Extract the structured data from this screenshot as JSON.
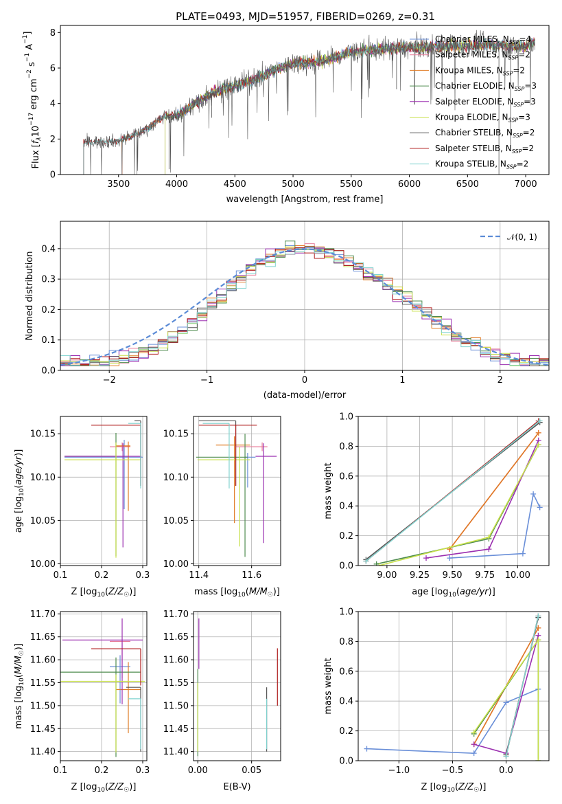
{
  "figure": {
    "title": "PLATE=0493, MJD=51957, FIBERID=0269, z=0.31"
  },
  "series": [
    {
      "key": "chab_miles",
      "legend": "Chabrier MILES, N$_{SSP}$=4",
      "name": "Chabrier MILES, N",
      "sub": "SSP",
      "n": "=4",
      "color": "#6a8fd8"
    },
    {
      "key": "salp_miles",
      "legend": "Salpeter MILES, N$_{SSP}$=2",
      "name": "Salpeter MILES, N",
      "sub": "SSP",
      "n": "=2",
      "color": "#e87d9a"
    },
    {
      "key": "krou_miles",
      "legend": "Kroupa MILES, N$_{SSP}$=2",
      "name": "Kroupa MILES, N",
      "sub": "SSP",
      "n": "=2",
      "color": "#e07b24"
    },
    {
      "key": "chab_elodie",
      "legend": "Chabrier ELODIE, N$_{SSP}$=3",
      "name": "Chabrier ELODIE, N",
      "sub": "SSP",
      "n": "=3",
      "color": "#4f8c4f"
    },
    {
      "key": "salp_elodie",
      "legend": "Salpeter ELODIE, N$_{SSP}$=3",
      "name": "Salpeter ELODIE, N",
      "sub": "SSP",
      "n": "=3",
      "color": "#9b2fb0"
    },
    {
      "key": "krou_elodie",
      "legend": "Kroupa ELODIE, N$_{SSP}$=3",
      "name": "Kroupa ELODIE, N",
      "sub": "SSP",
      "n": "=3",
      "color": "#c8e04a"
    },
    {
      "key": "chab_stelib",
      "legend": "Chabrier STELIB, N$_{SSP}$=2",
      "name": "Chabrier STELIB, N",
      "sub": "SSP",
      "n": "=2",
      "color": "#555555"
    },
    {
      "key": "salp_stelib",
      "legend": "Salpeter STELIB, N$_{SSP}$=2",
      "name": "Salpeter STELIB, N",
      "sub": "SSP",
      "n": "=2",
      "color": "#b01f1f"
    },
    {
      "key": "krou_stelib",
      "legend": "Kroupa STELIB, N$_{SSP}$=2",
      "name": "Kroupa STELIB, N",
      "sub": "SSP",
      "n": "=2",
      "color": "#7fd3cf"
    }
  ],
  "chart_data": [
    {
      "id": "spectrum",
      "type": "line",
      "xlabel": "wavelength [Angstrom, rest frame]",
      "ylabel_parts": [
        "Flux [",
        "f",
        "λ",
        "10",
        "−17",
        " erg cm",
        "−2",
        " s",
        "−1",
        " A",
        "−1",
        "]"
      ],
      "xlim": [
        3000,
        7200
      ],
      "ylim": [
        0,
        8.4
      ],
      "xticks": [
        3500,
        4000,
        4500,
        5000,
        5500,
        6000,
        6500,
        7000
      ],
      "yticks": [
        0,
        2,
        4,
        6,
        8
      ],
      "continuum": [
        [
          3200,
          1.8
        ],
        [
          3500,
          1.9
        ],
        [
          3700,
          2.4
        ],
        [
          3900,
          3.3
        ],
        [
          4000,
          3.3
        ],
        [
          4300,
          4.6
        ],
        [
          4600,
          5.2
        ],
        [
          5000,
          6.3
        ],
        [
          5200,
          6.3
        ],
        [
          5500,
          6.9
        ],
        [
          5800,
          7.1
        ],
        [
          6200,
          7.2
        ],
        [
          6700,
          7.3
        ],
        [
          7000,
          7.2
        ],
        [
          7100,
          7.6
        ]
      ]
    },
    {
      "id": "residuals",
      "type": "histogram",
      "xlabel": "(data-model)/error",
      "ylabel": "Normed distribution",
      "xlim": [
        -2.5,
        2.5
      ],
      "ylim": [
        0,
        0.49
      ],
      "xticks": [
        -2,
        -1,
        0,
        1,
        2
      ],
      "yticks": [
        0.0,
        0.1,
        0.2,
        0.3,
        0.4
      ],
      "bin_width": 0.1,
      "reference": {
        "label": "𝒩(0, 1)",
        "mean": 0,
        "sigma": 1,
        "color": "#5b8bd6"
      }
    },
    {
      "id": "age_vs_Z",
      "type": "errorbar",
      "xlabel": "Z [log10(Z/Z☉)]",
      "ylabel": "age [log10(age/yr)]",
      "xlim": [
        0.1,
        0.31
      ],
      "ylim": [
        9.998,
        10.17
      ],
      "xticks": [
        0.1,
        0.2,
        0.3
      ],
      "yticks": [
        10.0,
        10.05,
        10.1,
        10.15
      ],
      "points": [
        {
          "s": "chab_miles",
          "x": 0.255,
          "xerr": [
            0.145,
            0.045
          ],
          "y": 10.123,
          "yerr": [
            0.06,
            0.02
          ]
        },
        {
          "s": "salp_miles",
          "x": 0.25,
          "xerr": [
            0.03,
            0.02
          ],
          "y": 10.135,
          "yerr": [
            0.005,
            0.005
          ]
        },
        {
          "s": "krou_miles",
          "x": 0.265,
          "xerr": [
            0.03,
            0.005
          ],
          "y": 10.136,
          "yerr": [
            0.075,
            0.005
          ]
        },
        {
          "s": "chab_elodie",
          "x": 0.235,
          "xerr": [
            0.125,
            0.0
          ],
          "y": 10.124,
          "yerr": [
            0.115,
            0.027
          ]
        },
        {
          "s": "salp_elodie",
          "x": 0.252,
          "xerr": [
            0.142,
            0.045
          ],
          "y": 10.124,
          "yerr": [
            0.105,
            0.015
          ]
        },
        {
          "s": "krou_elodie",
          "x": 0.235,
          "xerr": [
            0.125,
            0.06
          ],
          "y": 10.12,
          "yerr": [
            0.113,
            0.02
          ]
        },
        {
          "s": "chab_stelib",
          "x": 0.295,
          "xerr": [
            0.015,
            0.0
          ],
          "y": 10.165,
          "yerr": [
            0.075,
            0.0
          ]
        },
        {
          "s": "salp_stelib",
          "x": 0.295,
          "xerr": [
            0.12,
            0.0
          ],
          "y": 10.16,
          "yerr": [
            0.07,
            0.0
          ]
        },
        {
          "s": "krou_stelib",
          "x": 0.295,
          "xerr": [
            0.03,
            0.0
          ],
          "y": 10.162,
          "yerr": [
            0.075,
            0.0
          ]
        }
      ]
    },
    {
      "id": "age_vs_mass",
      "type": "errorbar",
      "xlabel": "mass [log10(M/M☉)]",
      "ylabel": "",
      "xlim": [
        11.38,
        11.71
      ],
      "ylim": [
        9.998,
        10.17
      ],
      "xticks": [
        11.4,
        11.6
      ],
      "yticks": [
        10.0,
        10.05,
        10.1,
        10.15
      ],
      "points": [
        {
          "s": "chab_miles",
          "x": 11.585,
          "xerr": [
            0.01,
            0.03
          ],
          "y": 10.123,
          "yerr": [
            0.035,
            0.005
          ]
        },
        {
          "s": "salp_miles",
          "x": 11.64,
          "xerr": [
            0.1,
            0.02
          ],
          "y": 10.135,
          "yerr": [
            0.005,
            0.005
          ]
        },
        {
          "s": "krou_miles",
          "x": 11.535,
          "xerr": [
            0.07,
            0.06
          ],
          "y": 10.137,
          "yerr": [
            0.09,
            0.01
          ]
        },
        {
          "s": "chab_elodie",
          "x": 11.575,
          "xerr": [
            0.185,
            0.01
          ],
          "y": 10.123,
          "yerr": [
            0.115,
            0.027
          ]
        },
        {
          "s": "salp_elodie",
          "x": 11.645,
          "xerr": [
            0.03,
            0.05
          ],
          "y": 10.124,
          "yerr": [
            0.1,
            0.015
          ]
        },
        {
          "s": "krou_elodie",
          "x": 11.555,
          "xerr": [
            0.16,
            0.04
          ],
          "y": 10.12,
          "yerr": [
            0.1,
            0.015
          ]
        },
        {
          "s": "chab_stelib",
          "x": 11.54,
          "xerr": [
            0.14,
            0.0
          ],
          "y": 10.165,
          "yerr": [
            0.075,
            0.0
          ]
        },
        {
          "s": "salp_stelib",
          "x": 11.54,
          "xerr": [
            0.14,
            0.08
          ],
          "y": 10.16,
          "yerr": [
            0.07,
            0.0
          ]
        },
        {
          "s": "krou_stelib",
          "x": 11.515,
          "xerr": [
            0.1,
            0.0
          ],
          "y": 10.162,
          "yerr": [
            0.075,
            0.0
          ]
        }
      ]
    },
    {
      "id": "weight_vs_age",
      "type": "line",
      "xlabel": "age [log10(age/yr)]",
      "ylabel": "mass weight",
      "xlim": [
        8.78,
        10.24
      ],
      "ylim": [
        0,
        1.0
      ],
      "xticks": [
        9.0,
        9.25,
        9.5,
        9.75,
        10.0
      ],
      "yticks": [
        0.0,
        0.2,
        0.4,
        0.6,
        0.8,
        1.0
      ],
      "lines": [
        {
          "s": "chab_miles",
          "x": [
            9.48,
            10.04,
            10.12,
            10.17
          ],
          "y": [
            0.05,
            0.08,
            0.48,
            0.39
          ]
        },
        {
          "s": "salp_miles",
          "x": [
            9.48,
            10.16
          ],
          "y": [
            0.11,
            0.89
          ]
        },
        {
          "s": "krou_miles",
          "x": [
            9.48,
            10.16
          ],
          "y": [
            0.11,
            0.89
          ]
        },
        {
          "s": "chab_elodie",
          "x": [
            8.92,
            9.78,
            10.16
          ],
          "y": [
            0.01,
            0.18,
            0.81
          ]
        },
        {
          "s": "salp_elodie",
          "x": [
            9.3,
            9.78,
            10.16
          ],
          "y": [
            0.05,
            0.11,
            0.84
          ]
        },
        {
          "s": "krou_elodie",
          "x": [
            8.94,
            9.78,
            10.16
          ],
          "y": [
            0.0,
            0.19,
            0.81
          ]
        },
        {
          "s": "chab_stelib",
          "x": [
            8.84,
            10.17
          ],
          "y": [
            0.04,
            0.96
          ]
        },
        {
          "s": "salp_stelib",
          "x": [
            8.84,
            10.16
          ],
          "y": [
            0.03,
            0.97
          ]
        },
        {
          "s": "krou_stelib",
          "x": [
            8.84,
            10.17
          ],
          "y": [
            0.03,
            0.97
          ]
        }
      ]
    },
    {
      "id": "mass_vs_Z",
      "type": "errorbar",
      "xlabel": "Z [log10(Z/Z☉)]",
      "ylabel": "mass [log10(M/M☉)]",
      "xlim": [
        0.1,
        0.31
      ],
      "ylim": [
        11.38,
        11.705
      ],
      "xticks": [
        0.1,
        0.2,
        0.3
      ],
      "yticks": [
        11.4,
        11.45,
        11.5,
        11.55,
        11.6,
        11.65,
        11.7
      ],
      "points": [
        {
          "s": "chab_miles",
          "x": 0.245,
          "xerr": [
            0.025,
            0.025
          ],
          "y": 11.585,
          "yerr": [
            0.08,
            0.025
          ]
        },
        {
          "s": "salp_miles",
          "x": 0.25,
          "xerr": [
            0.03,
            0.02
          ],
          "y": 11.64,
          "yerr": [
            0.08,
            0.0
          ]
        },
        {
          "s": "krou_miles",
          "x": 0.265,
          "xerr": [
            0.03,
            0.03
          ],
          "y": 11.535,
          "yerr": [
            0.095,
            0.06
          ]
        },
        {
          "s": "chab_elodie",
          "x": 0.235,
          "xerr": [
            0.135,
            0.06
          ],
          "y": 11.573,
          "yerr": [
            0.185,
            0.032
          ]
        },
        {
          "s": "salp_elodie",
          "x": 0.25,
          "xerr": [
            0.145,
            0.05
          ],
          "y": 11.643,
          "yerr": [
            0.14,
            0.047
          ]
        },
        {
          "s": "krou_elodie",
          "x": 0.235,
          "xerr": [
            0.135,
            0.07
          ],
          "y": 11.553,
          "yerr": [
            0.155,
            0.015
          ]
        },
        {
          "s": "chab_stelib",
          "x": 0.295,
          "xerr": [
            0.035,
            0.0
          ],
          "y": 11.54,
          "yerr": [
            0.14,
            0.0
          ]
        },
        {
          "s": "salp_stelib",
          "x": 0.295,
          "xerr": [
            0.12,
            0.0
          ],
          "y": 11.624,
          "yerr": [
            0.08,
            0.0
          ]
        },
        {
          "s": "krou_stelib",
          "x": 0.295,
          "xerr": [
            0.03,
            0.0
          ],
          "y": 11.515,
          "yerr": [
            0.11,
            0.0
          ]
        }
      ]
    },
    {
      "id": "mass_vs_ebv",
      "type": "errorbar",
      "xlabel": "E(B-V)",
      "ylabel": "",
      "xlim": [
        -0.004,
        0.077
      ],
      "ylim": [
        11.38,
        11.705
      ],
      "xticks": [
        0.0,
        0.05
      ],
      "yticks": [
        11.4,
        11.45,
        11.5,
        11.55,
        11.6,
        11.65,
        11.7
      ],
      "points": [
        {
          "s": "salp_elodie",
          "x": 0.001,
          "xerr": [
            0,
            0
          ],
          "y": 11.64,
          "yerr": [
            0.06,
            0.05
          ]
        },
        {
          "s": "chab_elodie",
          "x": 0.0,
          "xerr": [
            0,
            0
          ],
          "y": 11.58,
          "yerr": [
            0.19,
            0.0
          ]
        },
        {
          "s": "krou_elodie",
          "x": 0.0,
          "xerr": [
            0,
            0
          ],
          "y": 11.55,
          "yerr": [
            0.15,
            0.0
          ]
        },
        {
          "s": "chab_stelib",
          "x": 0.064,
          "xerr": [
            0,
            0
          ],
          "y": 11.54,
          "yerr": [
            0.14,
            0.0
          ]
        },
        {
          "s": "krou_stelib",
          "x": 0.064,
          "xerr": [
            0,
            0
          ],
          "y": 11.515,
          "yerr": [
            0.11,
            0.0
          ]
        },
        {
          "s": "salp_stelib",
          "x": 0.074,
          "xerr": [
            0,
            0
          ],
          "y": 11.57,
          "yerr": [
            0.07,
            0.055
          ]
        }
      ]
    },
    {
      "id": "weight_vs_Z",
      "type": "line",
      "xlabel": "Z [log10(Z/Z☉)]",
      "ylabel": "mass weight",
      "xlim": [
        -1.38,
        0.4
      ],
      "ylim": [
        0,
        1.0
      ],
      "xticks": [
        -1.0,
        -0.5,
        0.0
      ],
      "yticks": [
        0.0,
        0.2,
        0.4,
        0.6,
        0.8,
        1.0
      ],
      "lines": [
        {
          "s": "chab_miles",
          "x": [
            -1.3,
            -0.3,
            0.0,
            0.3
          ],
          "y": [
            0.08,
            0.05,
            0.39,
            0.48
          ]
        },
        {
          "s": "salp_miles",
          "x": [
            -0.3,
            0.3
          ],
          "y": [
            0.11,
            0.89
          ]
        },
        {
          "s": "krou_miles",
          "x": [
            -0.3,
            0.3
          ],
          "y": [
            0.11,
            0.89
          ]
        },
        {
          "s": "chab_elodie",
          "x": [
            -0.3,
            0.3,
            0.3
          ],
          "y": [
            0.18,
            0.81,
            0.0
          ]
        },
        {
          "s": "salp_elodie",
          "x": [
            -0.3,
            0.0,
            0.3
          ],
          "y": [
            0.11,
            0.05,
            0.84
          ]
        },
        {
          "s": "krou_elodie",
          "x": [
            -0.3,
            0.3,
            0.3
          ],
          "y": [
            0.19,
            0.81,
            0.0
          ]
        },
        {
          "s": "chab_stelib",
          "x": [
            0.0,
            0.3
          ],
          "y": [
            0.04,
            0.96
          ]
        },
        {
          "s": "salp_stelib",
          "x": [
            0.0,
            0.3
          ],
          "y": [
            0.03,
            0.97
          ]
        },
        {
          "s": "krou_stelib",
          "x": [
            0.0,
            0.3
          ],
          "y": [
            0.03,
            0.97
          ]
        }
      ]
    }
  ]
}
